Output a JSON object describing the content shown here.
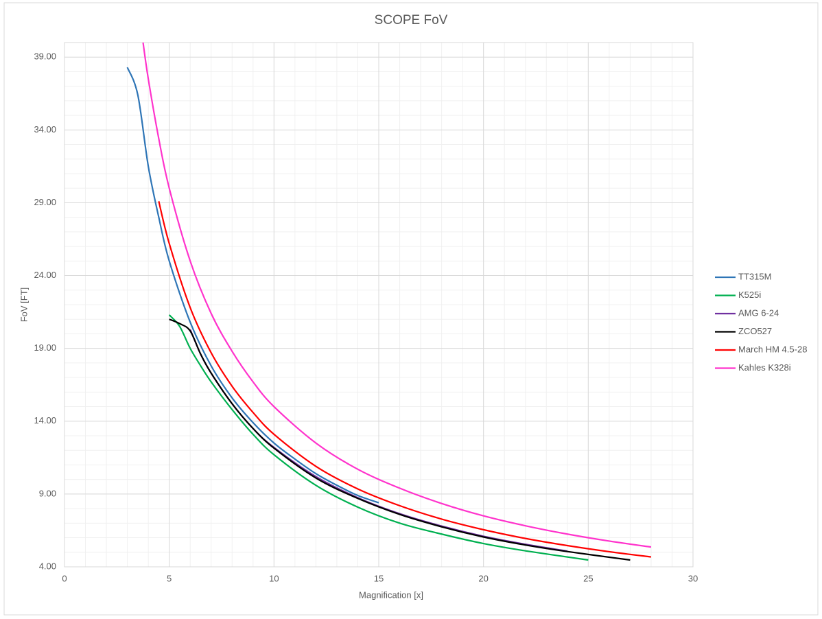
{
  "chart_data": {
    "type": "line",
    "smooth": true,
    "title": "SCOPE FoV",
    "x_label": "Magnification [x]",
    "y_label": "FoV [FT]",
    "xlim": [
      0,
      30
    ],
    "xticks": [
      0,
      5,
      10,
      15,
      20,
      25,
      30
    ],
    "ylim": [
      4,
      40
    ],
    "yticks": [
      {
        "value": 4,
        "label": "4.00"
      },
      {
        "value": 9,
        "label": "9.00"
      },
      {
        "value": 14,
        "label": "14.00"
      },
      {
        "value": 19,
        "label": "19.00"
      },
      {
        "value": 24,
        "label": "24.00"
      },
      {
        "value": 29,
        "label": "29.00"
      },
      {
        "value": 34,
        "label": "34.00"
      },
      {
        "value": 39,
        "label": "39.00"
      }
    ],
    "grid": true,
    "minor_grid": true,
    "legend": "right",
    "series": [
      {
        "name": "TT315M",
        "color": "#2e75b6",
        "x": [
          3,
          3.5,
          4,
          4.5,
          5,
          6,
          7,
          8,
          9,
          10,
          11,
          12,
          13,
          14,
          15
        ],
        "values": [
          38.3,
          36.4,
          31.5,
          28.0,
          25.0,
          20.8,
          17.8,
          15.6,
          13.9,
          12.5,
          11.4,
          10.4,
          9.6,
          8.9,
          8.4
        ]
      },
      {
        "name": "K525i",
        "color": "#00b050",
        "x": [
          5,
          5.5,
          6,
          6.5,
          7,
          8,
          9,
          10,
          12,
          14,
          16,
          18,
          20,
          22,
          25
        ],
        "values": [
          21.3,
          20.5,
          19.0,
          17.8,
          16.7,
          14.8,
          13.1,
          11.7,
          9.6,
          8.1,
          7.0,
          6.25,
          5.6,
          5.1,
          4.47
        ]
      },
      {
        "name": "AMG 6-24",
        "color": "#7030a0",
        "x": [
          6,
          6.5,
          7,
          8,
          9,
          10,
          12,
          14,
          16,
          18,
          20,
          22,
          24
        ],
        "values": [
          20.3,
          18.6,
          17.3,
          15.2,
          13.5,
          12.2,
          10.2,
          8.75,
          7.65,
          6.8,
          6.1,
          5.55,
          5.08
        ]
      },
      {
        "name": "ZCO527",
        "color": "#000000",
        "x": [
          5,
          5.5,
          6,
          6.5,
          7,
          8,
          9,
          10,
          12,
          14,
          16,
          18,
          20,
          22,
          24,
          27
        ],
        "values": [
          21.0,
          20.7,
          20.2,
          18.6,
          17.3,
          15.2,
          13.5,
          12.15,
          10.1,
          8.7,
          7.6,
          6.75,
          6.05,
          5.5,
          5.05,
          4.47
        ]
      },
      {
        "name": "March HM 4.5-28",
        "color": "#ff0000",
        "x": [
          4.5,
          5,
          6,
          7,
          8,
          9,
          10,
          12,
          14,
          16,
          18,
          20,
          22,
          24,
          26,
          28
        ],
        "values": [
          29.1,
          26.2,
          21.8,
          18.7,
          16.4,
          14.6,
          13.1,
          10.9,
          9.35,
          8.2,
          7.28,
          6.55,
          5.95,
          5.46,
          5.04,
          4.68
        ]
      },
      {
        "name": "Kahles K328i",
        "color": "#ff33cc",
        "x": [
          3.75,
          4,
          4.5,
          5,
          6,
          7,
          8,
          9,
          10,
          12,
          14,
          16,
          18,
          20,
          22,
          24,
          26,
          28
        ],
        "values": [
          40,
          37.5,
          33.4,
          30.0,
          25.0,
          21.4,
          18.8,
          16.7,
          15.0,
          12.5,
          10.7,
          9.4,
          8.35,
          7.5,
          6.82,
          6.25,
          5.77,
          5.36
        ]
      }
    ]
  }
}
